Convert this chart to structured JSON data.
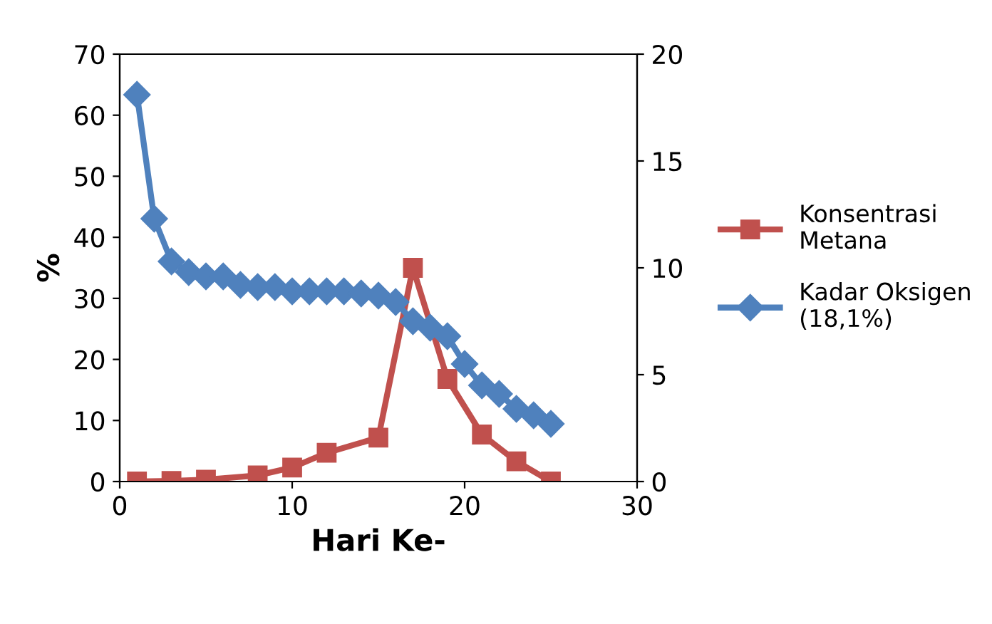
{
  "chart_data": {
    "type": "line",
    "xlabel": "Hari Ke-",
    "ylabel": "%",
    "xlim": [
      0,
      30
    ],
    "xticks": [
      0,
      10,
      20,
      30
    ],
    "ylim": [
      0,
      70
    ],
    "yticks": [
      0,
      10,
      20,
      30,
      40,
      50,
      60,
      70
    ],
    "y2lim": [
      0,
      20
    ],
    "y2ticks": [
      0,
      5,
      10,
      15,
      20
    ],
    "grid": false,
    "legend": "right",
    "series": [
      {
        "name": "Konsentrasi\nMetana",
        "color": "#c0504d",
        "marker": "square",
        "x": [
          1,
          3,
          5,
          8,
          10,
          12,
          15,
          17,
          19,
          21,
          23,
          25
        ],
        "values": [
          0,
          0.1,
          0.3,
          1,
          2.3,
          4.7,
          7.2,
          35,
          16.8,
          7.7,
          3.3,
          0
        ]
      },
      {
        "name": "Kadar Oksigen\n(18,1%)",
        "color": "#4f81bd",
        "marker": "diamond",
        "axis": "y2",
        "x": [
          1,
          2,
          3,
          4,
          5,
          6,
          7,
          8,
          9,
          10,
          11,
          12,
          13,
          14,
          15,
          16,
          17,
          18,
          19,
          20,
          21,
          22,
          23,
          24,
          25
        ],
        "values": [
          18.1,
          12.3,
          10.3,
          9.8,
          9.6,
          9.6,
          9.2,
          9.1,
          9.1,
          8.9,
          8.9,
          8.9,
          8.9,
          8.8,
          8.7,
          8.4,
          7.5,
          7.2,
          6.8,
          5.5,
          4.5,
          4.1,
          3.4,
          3.1,
          2.7
        ]
      }
    ]
  }
}
